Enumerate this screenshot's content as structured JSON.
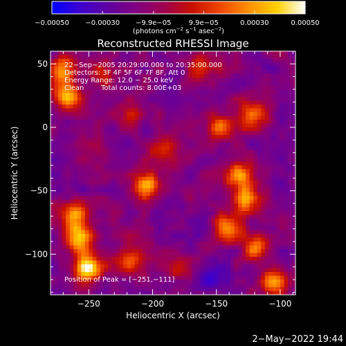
{
  "colorbar": {
    "tick_labels": [
      "−0.00050",
      "−0.00030",
      "−9.9e−05",
      "9.9e−05",
      "0.00030",
      "0.00050"
    ],
    "tick_values": [
      -0.0005,
      -0.0003,
      -9.9e-05,
      9.9e-05,
      0.0003,
      0.0005
    ],
    "range": [
      -0.0005,
      0.0005
    ],
    "unit_main": "(photons cm",
    "unit_sup1": "−2",
    "unit_mid1": " s",
    "unit_sup2": "−1",
    "unit_mid2": " asec",
    "unit_sup3": "−2",
    "unit_end": ")",
    "stops": [
      "#0000ff",
      "#3d00cf",
      "#6000a0",
      "#800080",
      "#a00050",
      "#c81000",
      "#f04800",
      "#ff9000",
      "#ffd000",
      "#ffffff"
    ]
  },
  "annotations": {
    "time": "22−Sep−2005 20:29:00.000 to 20:35:00.000",
    "detectors": "Detectors: 3F 4F 5F 6F 7F 8F, Att 0",
    "energy": "Energy Range: 12.0 − 25.0 keV",
    "method": "Clean",
    "counts": "Total counts: 8.00E+03",
    "peak": "Position of Peak = [−251,−111]"
  },
  "footer": {
    "date": "2−May−2022 19:44"
  },
  "chart_data": {
    "type": "heatmap",
    "title": "Reconstructed RHESSI Image",
    "xlabel": "Heliocentric X (arcsec)",
    "ylabel": "Heliocentric Y (arcsec)",
    "xlim": [
      -280,
      -88
    ],
    "ylim": [
      -132,
      60
    ],
    "x_ticks": [
      -250,
      -200,
      -150,
      -100
    ],
    "x_tick_labels": [
      "−250",
      "−200",
      "−150",
      "−100"
    ],
    "y_ticks": [
      50,
      0,
      -50,
      -100
    ],
    "y_tick_labels": [
      "50",
      "0",
      "−50",
      "−100"
    ],
    "value_range": [
      -0.0005,
      0.0005
    ],
    "peak_position": [
      -251,
      -111
    ],
    "sources": [
      {
        "x": -251,
        "y": -111,
        "rel": 1.0
      },
      {
        "x": -262,
        "y": -70,
        "rel": 0.85
      },
      {
        "x": -258,
        "y": -88,
        "rel": 0.8
      },
      {
        "x": -268,
        "y": 25,
        "rel": 0.75
      },
      {
        "x": -272,
        "y": 45,
        "rel": 0.65
      },
      {
        "x": -205,
        "y": -45,
        "rel": 0.8
      },
      {
        "x": -192,
        "y": -20,
        "rel": 0.5
      },
      {
        "x": -128,
        "y": -58,
        "rel": 0.8
      },
      {
        "x": -132,
        "y": -38,
        "rel": 0.75
      },
      {
        "x": -140,
        "y": -80,
        "rel": 0.7
      },
      {
        "x": -118,
        "y": -95,
        "rel": 0.6
      },
      {
        "x": -105,
        "y": -122,
        "rel": 0.7
      },
      {
        "x": -148,
        "y": 2,
        "rel": 0.55
      },
      {
        "x": -163,
        "y": 48,
        "rel": 0.55
      },
      {
        "x": -122,
        "y": 10,
        "rel": 0.6
      },
      {
        "x": -215,
        "y": 10,
        "rel": 0.4
      },
      {
        "x": -238,
        "y": 40,
        "rel": 0.45
      },
      {
        "x": -180,
        "y": -110,
        "rel": 0.45
      },
      {
        "x": -218,
        "y": -105,
        "rel": 0.5
      }
    ]
  }
}
